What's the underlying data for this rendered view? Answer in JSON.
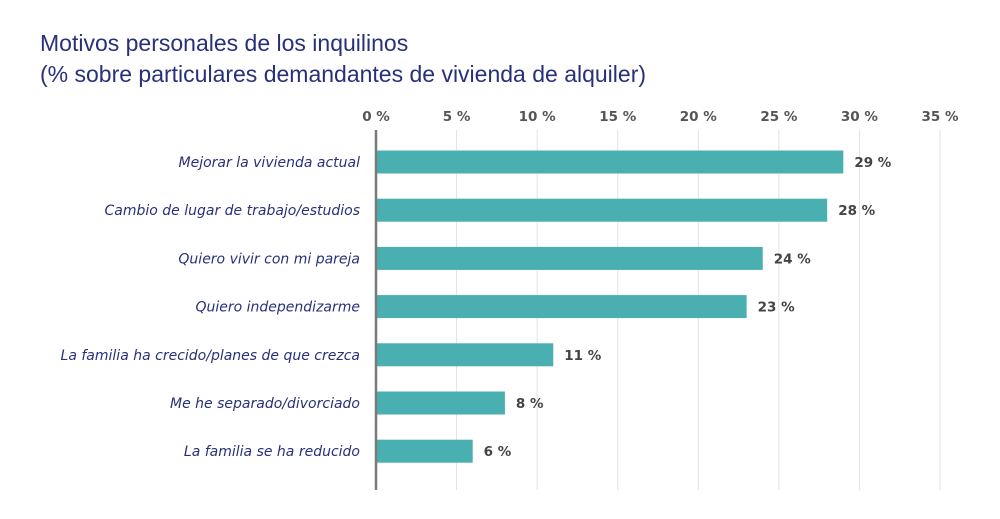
{
  "chart_data": {
    "type": "bar",
    "orientation": "horizontal",
    "title": "Motivos personales de los inquilinos",
    "subtitle": "(% sobre particulares demandantes de vivienda de alquiler)",
    "categories": [
      "Mejorar la vivienda actual",
      "Cambio de lugar de trabajo/estudios",
      "Quiero vivir con mi pareja",
      "Quiero independizarme",
      "La familia ha crecido/planes de que crezca",
      "Me he separado/divorciado",
      "La familia se ha reducido"
    ],
    "values": [
      29,
      28,
      24,
      23,
      11,
      8,
      6
    ],
    "data_labels": [
      "29 %",
      "28 %",
      "24 %",
      "23 %",
      "11 %",
      "8 %",
      "6 %"
    ],
    "xlim": [
      0,
      35
    ],
    "tick_values": [
      0,
      5,
      10,
      15,
      20,
      25,
      30,
      35
    ],
    "tick_labels": [
      "0 %",
      "5 %",
      "10 %",
      "15 %",
      "20 %",
      "25 %",
      "30 %",
      "35 %"
    ],
    "axis_position": "top",
    "grid": true,
    "legend": "none",
    "colors": {
      "bar": "#4aafb0",
      "title": "#28307a",
      "category_text": "#28307a",
      "grid": "#e3e3e3",
      "axis": "#7a7a7a"
    }
  }
}
